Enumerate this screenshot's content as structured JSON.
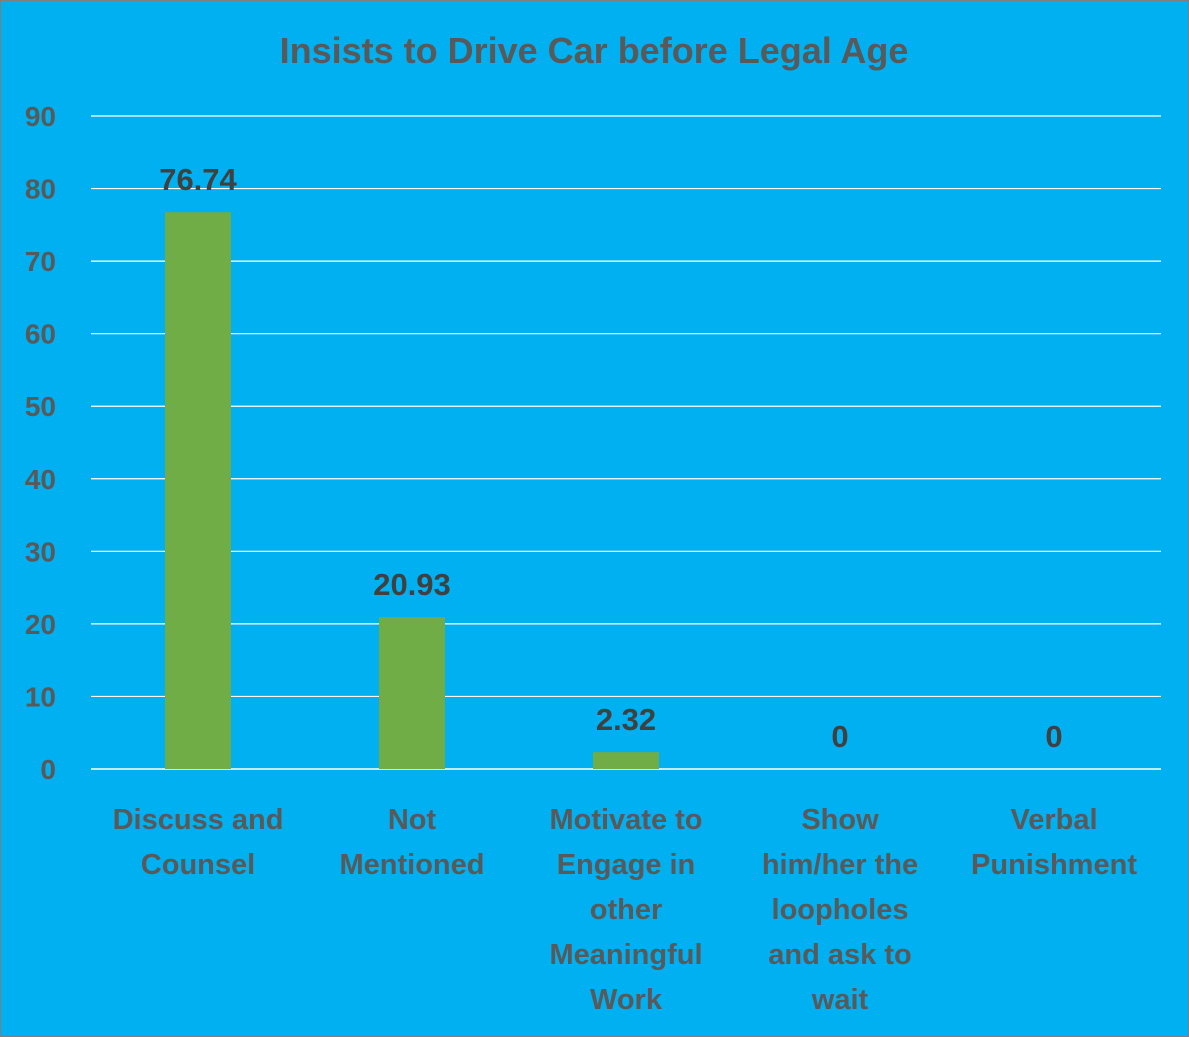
{
  "chart_data": {
    "type": "bar",
    "title": "Insists to Drive Car before Legal Age",
    "categories": [
      "Discuss and Counsel",
      "Not Mentioned",
      "Motivate to Engage in other Meaningful Work",
      "Show him/her the loopholes and ask to wait",
      "Verbal Punishment"
    ],
    "category_lines": [
      [
        "Discuss and",
        "Counsel"
      ],
      [
        "Not",
        "Mentioned"
      ],
      [
        "Motivate to",
        "Engage in",
        "other",
        "Meaningful",
        "Work"
      ],
      [
        "Show",
        "him/her the",
        "loopholes",
        "and ask to",
        "wait"
      ],
      [
        "Verbal",
        "Punishment"
      ]
    ],
    "values": [
      76.74,
      20.93,
      2.32,
      0,
      0
    ],
    "data_labels": [
      "76.74",
      "20.93",
      "2.32",
      "0",
      "0"
    ],
    "ylim": [
      0,
      90
    ],
    "yticks": [
      0,
      10,
      20,
      30,
      40,
      50,
      60,
      70,
      80,
      90
    ],
    "grid": true,
    "legend": "none",
    "colors": {
      "background": "#00b0f0",
      "bar": "#70ad47",
      "grid": "#ffffff",
      "text": "#595959",
      "data_label": "#404040"
    }
  }
}
